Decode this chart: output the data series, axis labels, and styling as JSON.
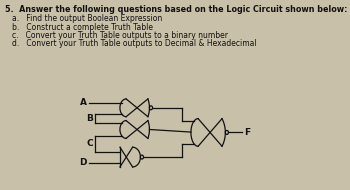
{
  "title_text": "5.  Answer the following questions based on the Logic Circuit shown below:",
  "questions": [
    "a.   Find the output Boolean Expression",
    "b.   Construct a complete Truth Table",
    "c.   Convert your Truth Table outputs to a binary number",
    "d.   Convert your Truth Table outputs to Decimal & Hexadecimal"
  ],
  "bg_color": "#c9c0aa",
  "text_color": "#111111",
  "gate_color": "#111111",
  "title_fontsize": 5.8,
  "question_fontsize": 5.5,
  "label_fontsize": 6.5,
  "output_label": "F"
}
